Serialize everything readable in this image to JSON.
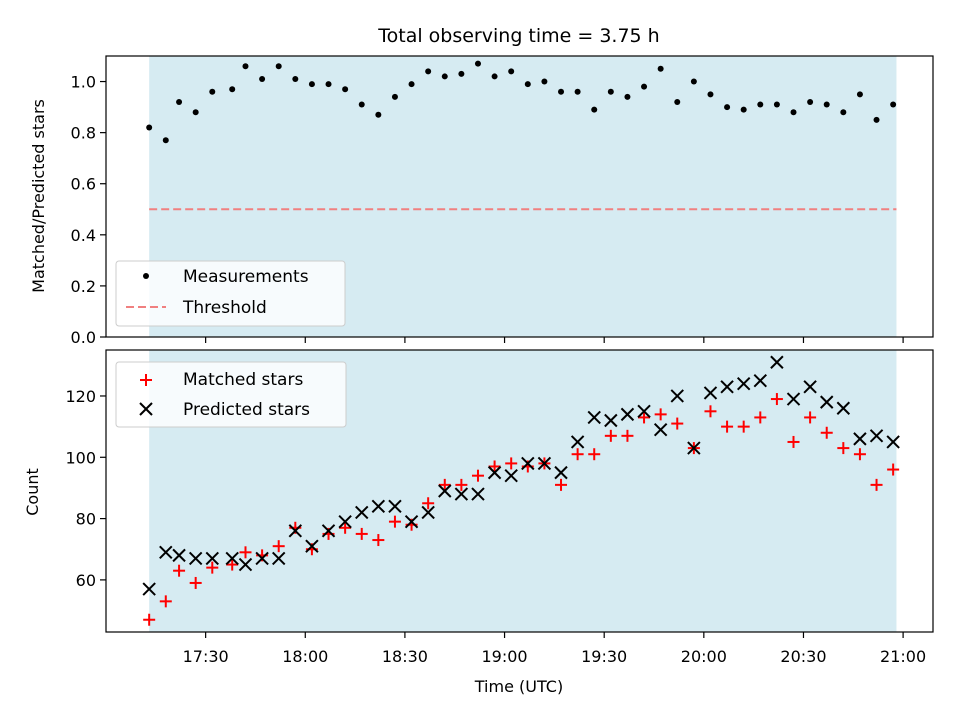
{
  "chart_data": [
    {
      "type": "scatter",
      "title": "Total observing time = 3.75 h",
      "xlabel": "",
      "ylabel": "Matched/Predicted stars",
      "ylim": [
        0,
        1.1
      ],
      "yticks": [
        0.0,
        0.2,
        0.4,
        0.6,
        0.8,
        1.0
      ],
      "ytick_labels": [
        "0.0",
        "0.2",
        "0.4",
        "0.6",
        "0.8",
        "1.0"
      ],
      "shaded_span": [
        "17:13",
        "20:58"
      ],
      "shade_color": "#add8e6",
      "threshold": 0.5,
      "legend_placement": "lower-left",
      "series": [
        {
          "name": "Measurements",
          "marker": "dot",
          "color": "#000000",
          "x": [
            "17:13",
            "17:18",
            "17:22",
            "17:27",
            "17:32",
            "17:38",
            "17:42",
            "17:47",
            "17:52",
            "17:57",
            "18:02",
            "18:07",
            "18:12",
            "18:17",
            "18:22",
            "18:27",
            "18:32",
            "18:37",
            "18:42",
            "18:47",
            "18:52",
            "18:57",
            "19:02",
            "19:07",
            "19:12",
            "19:17",
            "19:22",
            "19:27",
            "19:32",
            "19:37",
            "19:42",
            "19:47",
            "19:52",
            "19:57",
            "20:02",
            "20:07",
            "20:12",
            "20:17",
            "20:22",
            "20:27",
            "20:32",
            "20:37",
            "20:42",
            "20:47",
            "20:52",
            "20:57"
          ],
          "y": [
            0.82,
            0.77,
            0.92,
            0.88,
            0.96,
            0.97,
            1.06,
            1.01,
            1.06,
            1.01,
            0.99,
            0.99,
            0.97,
            0.91,
            0.87,
            0.94,
            0.99,
            1.04,
            1.02,
            1.03,
            1.07,
            1.02,
            1.04,
            0.99,
            1.0,
            0.96,
            0.96,
            0.89,
            0.96,
            0.94,
            0.98,
            1.05,
            0.92,
            1.0,
            0.95,
            0.9,
            0.89,
            0.91,
            0.91,
            0.88,
            0.92,
            0.91,
            0.88,
            0.95,
            0.85,
            0.91
          ]
        },
        {
          "name": "Threshold",
          "marker": "dashed-line",
          "color": "#f08080",
          "x": [
            "17:13",
            "20:58"
          ],
          "y": [
            0.5,
            0.5
          ]
        }
      ]
    },
    {
      "type": "scatter",
      "title": "",
      "xlabel": "Time (UTC)",
      "ylabel": "Count",
      "ylim": [
        43,
        135
      ],
      "xlim": [
        "17:00",
        "21:09"
      ],
      "xticks": [
        "17:30",
        "18:00",
        "18:30",
        "19:00",
        "19:30",
        "20:00",
        "20:30",
        "21:00"
      ],
      "yticks": [
        60,
        80,
        100,
        120
      ],
      "ytick_labels": [
        "60",
        "80",
        "100",
        "120"
      ],
      "shaded_span": [
        "17:13",
        "20:58"
      ],
      "shade_color": "#add8e6",
      "legend_placement": "upper-left",
      "series": [
        {
          "name": "Matched stars",
          "marker": "plus",
          "color": "#ff0000",
          "x": [
            "17:13",
            "17:18",
            "17:22",
            "17:27",
            "17:32",
            "17:38",
            "17:42",
            "17:47",
            "17:52",
            "17:57",
            "18:02",
            "18:07",
            "18:12",
            "18:17",
            "18:22",
            "18:27",
            "18:32",
            "18:37",
            "18:42",
            "18:47",
            "18:52",
            "18:57",
            "19:02",
            "19:07",
            "19:12",
            "19:17",
            "19:22",
            "19:27",
            "19:32",
            "19:37",
            "19:42",
            "19:47",
            "19:52",
            "19:57",
            "20:02",
            "20:07",
            "20:12",
            "20:17",
            "20:22",
            "20:27",
            "20:32",
            "20:37",
            "20:42",
            "20:47",
            "20:52",
            "20:57"
          ],
          "y": [
            47,
            53,
            63,
            59,
            64,
            65,
            69,
            68,
            71,
            77,
            70,
            75,
            77,
            75,
            73,
            79,
            78,
            85,
            91,
            91,
            94,
            97,
            98,
            97,
            98,
            91,
            101,
            101,
            107,
            107,
            113,
            114,
            111,
            103,
            115,
            110,
            110,
            113,
            119,
            105,
            113,
            108,
            103,
            101,
            91,
            96
          ]
        },
        {
          "name": "Predicted stars",
          "marker": "x",
          "color": "#000000",
          "x": [
            "17:13",
            "17:18",
            "17:22",
            "17:27",
            "17:32",
            "17:38",
            "17:42",
            "17:47",
            "17:52",
            "17:57",
            "18:02",
            "18:07",
            "18:12",
            "18:17",
            "18:22",
            "18:27",
            "18:32",
            "18:37",
            "18:42",
            "18:47",
            "18:52",
            "18:57",
            "19:02",
            "19:07",
            "19:12",
            "19:17",
            "19:22",
            "19:27",
            "19:32",
            "19:37",
            "19:42",
            "19:47",
            "19:52",
            "19:57",
            "20:02",
            "20:07",
            "20:12",
            "20:17",
            "20:22",
            "20:27",
            "20:32",
            "20:37",
            "20:42",
            "20:47",
            "20:52",
            "20:57"
          ],
          "y": [
            57,
            69,
            68,
            67,
            67,
            67,
            65,
            67,
            67,
            76,
            71,
            76,
            79,
            82,
            84,
            84,
            79,
            82,
            89,
            88,
            88,
            95,
            94,
            98,
            98,
            95,
            105,
            113,
            112,
            114,
            115,
            109,
            120,
            103,
            121,
            123,
            124,
            125,
            131,
            119,
            123,
            118,
            116,
            106,
            107,
            105
          ]
        }
      ]
    }
  ]
}
